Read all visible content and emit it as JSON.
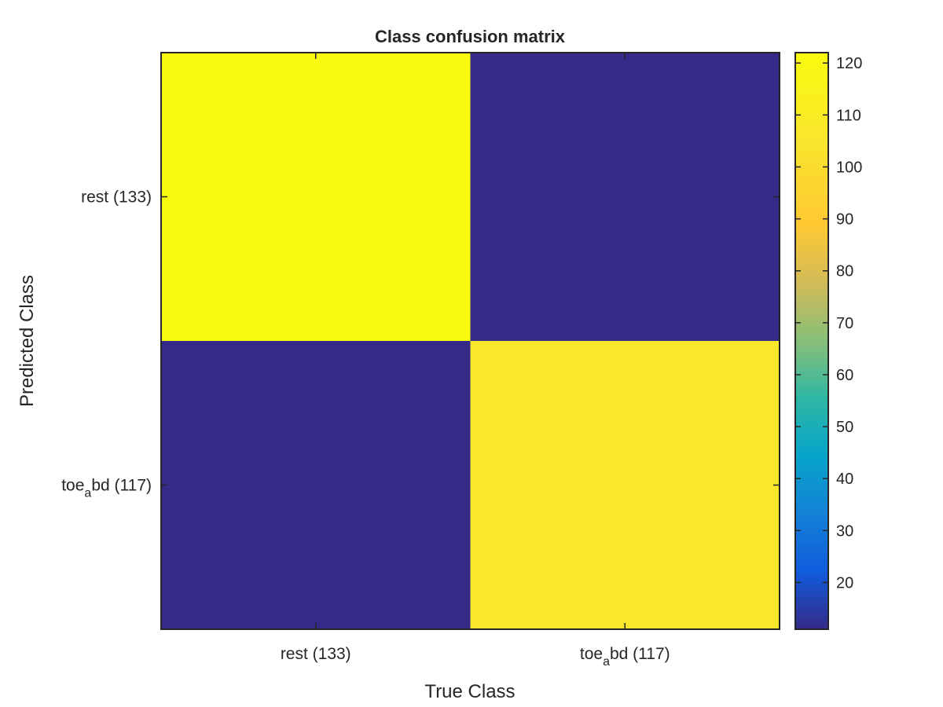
{
  "chart_data": {
    "type": "heatmap",
    "title": "Class confusion matrix",
    "xlabel": "True Class",
    "ylabel": "Predicted Class",
    "x_tick_labels": [
      {
        "base": "rest (133)",
        "sub": "",
        "rest": ""
      },
      {
        "base": "toe",
        "sub": "a",
        "rest": "bd (117)"
      }
    ],
    "y_tick_labels": [
      {
        "base": "rest (133)",
        "sub": "",
        "rest": ""
      },
      {
        "base": "toe",
        "sub": "a",
        "rest": "bd (117)"
      }
    ],
    "matrix": [
      [
        122,
        11
      ],
      [
        11,
        106
      ]
    ],
    "colorbar": {
      "range": [
        11,
        122
      ],
      "ticks": [
        "20",
        "30",
        "40",
        "50",
        "60",
        "70",
        "80",
        "90",
        "100",
        "110",
        "120"
      ],
      "colormap": "parula"
    }
  }
}
